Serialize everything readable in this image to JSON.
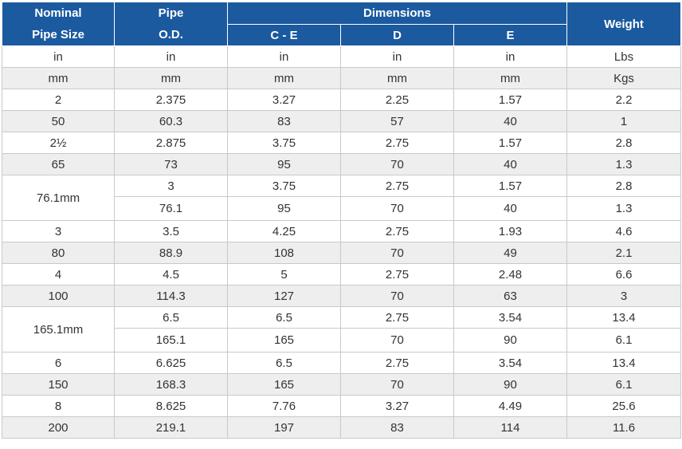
{
  "header": {
    "nominal_line1": "Nominal",
    "nominal_line2": "Pipe Size",
    "pipe_line1": "Pipe",
    "pipe_line2": "O.D.",
    "dimensions": "Dimensions",
    "ce": "C - E",
    "d": "D",
    "e": "E",
    "weight": "Weight"
  },
  "units": [
    [
      "in",
      "in",
      "in",
      "in",
      "in",
      "Lbs"
    ],
    [
      "mm",
      "mm",
      "mm",
      "mm",
      "mm",
      "Kgs"
    ]
  ],
  "rows": [
    [
      "2",
      "2.375",
      "3.27",
      "2.25",
      "1.57",
      "2.2"
    ],
    [
      "50",
      "60.3",
      "83",
      "57",
      "40",
      "1"
    ],
    [
      "2½",
      "2.875",
      "3.75",
      "2.75",
      "1.57",
      "2.8"
    ],
    [
      "65",
      "73",
      "95",
      "70",
      "40",
      "1.3"
    ]
  ],
  "merged_a": {
    "size": "76.1mm",
    "row1": [
      "3",
      "3.75",
      "2.75",
      "1.57",
      "2.8"
    ],
    "row2": [
      "76.1",
      "95",
      "70",
      "40",
      "1.3"
    ]
  },
  "rows_b": [
    [
      "3",
      "3.5",
      "4.25",
      "2.75",
      "1.93",
      "4.6"
    ],
    [
      "80",
      "88.9",
      "108",
      "70",
      "49",
      "2.1"
    ],
    [
      "4",
      "4.5",
      "5",
      "2.75",
      "2.48",
      "6.6"
    ],
    [
      "100",
      "114.3",
      "127",
      "70",
      "63",
      "3"
    ]
  ],
  "merged_b": {
    "size": "165.1mm",
    "row1": [
      "6.5",
      "6.5",
      "2.75",
      "3.54",
      "13.4"
    ],
    "row2": [
      "165.1",
      "165",
      "70",
      "90",
      "6.1"
    ]
  },
  "rows_c": [
    [
      "6",
      "6.625",
      "6.5",
      "2.75",
      "3.54",
      "13.4"
    ],
    [
      "150",
      "168.3",
      "165",
      "70",
      "90",
      "6.1"
    ],
    [
      "8",
      "8.625",
      "7.76",
      "3.27",
      "4.49",
      "25.6"
    ],
    [
      "200",
      "219.1",
      "197",
      "83",
      "114",
      "11.6"
    ]
  ]
}
